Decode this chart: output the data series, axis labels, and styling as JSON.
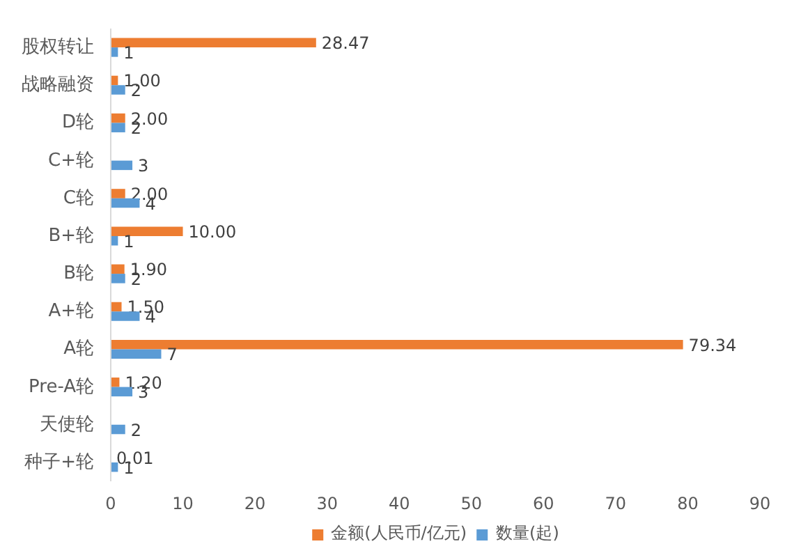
{
  "chart_data": {
    "type": "bar",
    "orientation": "horizontal",
    "categories": [
      "股权转让",
      "战略融资",
      "D轮",
      "C+轮",
      "C轮",
      "B+轮",
      "B轮",
      "A+轮",
      "A轮",
      "Pre-A轮",
      "天使轮",
      "种子+轮"
    ],
    "series": [
      {
        "name": "金额(人民币/亿元)",
        "color": "#ed7d31",
        "values": [
          28.47,
          1.0,
          2.0,
          null,
          2.0,
          10.0,
          1.9,
          1.5,
          79.34,
          1.2,
          null,
          0.01
        ],
        "value_labels": [
          "28.47",
          "1.00",
          "2.00",
          null,
          "2.00",
          "10.00",
          "1.90",
          "1.50",
          "79.34",
          "1.20",
          null,
          "0.01"
        ]
      },
      {
        "name": "数量(起)",
        "color": "#5b9bd5",
        "values": [
          1,
          2,
          2,
          3,
          4,
          1,
          2,
          4,
          7,
          3,
          2,
          1
        ],
        "value_labels": [
          "1",
          "2",
          "2",
          "3",
          "4",
          "1",
          "2",
          "4",
          "7",
          "3",
          "2",
          "1"
        ]
      }
    ],
    "xlim": [
      0,
      90
    ],
    "xticks": [
      0,
      10,
      20,
      30,
      40,
      50,
      60,
      70,
      80,
      90
    ],
    "legend": "bottom"
  }
}
